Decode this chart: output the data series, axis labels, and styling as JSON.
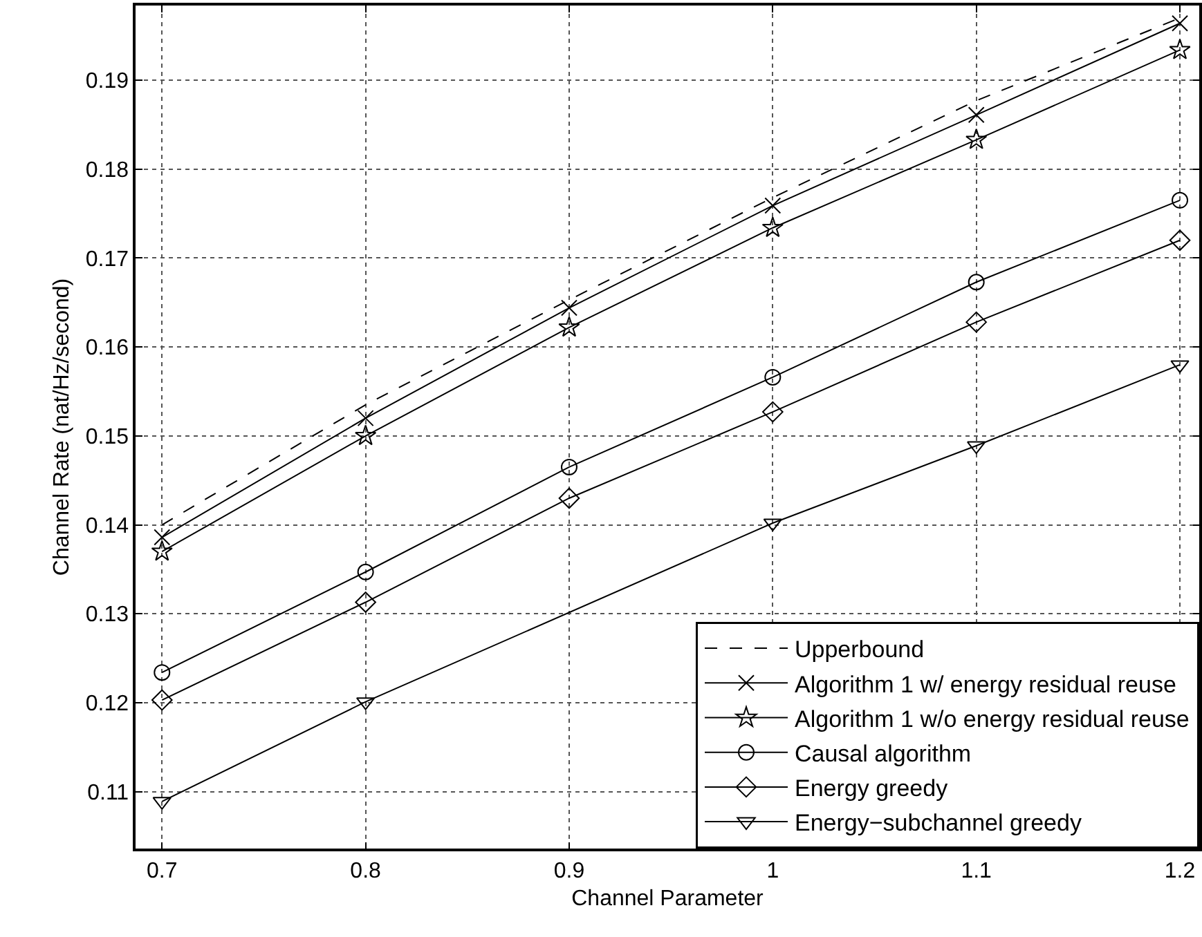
{
  "chart_data": {
    "type": "line",
    "xlabel": "Channel Parameter",
    "ylabel": "Channel Rate (nat/Hz/second)",
    "x": [
      0.7,
      0.8,
      0.9,
      1.0,
      1.1,
      1.2
    ],
    "xlim": [
      0.687,
      1.2095
    ],
    "xticks": [
      0.7,
      0.8,
      0.9,
      1,
      1.1,
      1.2
    ],
    "ylim": [
      0.1036,
      0.1984
    ],
    "yticks": [
      0.11,
      0.12,
      0.13,
      0.14,
      0.15,
      0.16,
      0.17,
      0.18,
      0.19
    ],
    "grid": true,
    "legend": "bottom right",
    "series": [
      {
        "name": "Upperbound",
        "color": "#000000",
        "marker": "none",
        "line_style": "dashed",
        "values": [
          0.14,
          0.1535,
          0.1653,
          0.1768,
          0.1877,
          0.197
        ]
      },
      {
        "name": "Algorithm 1 w/ energy residual reuse",
        "color": "#000000",
        "marker": "cross",
        "line_style": "solid",
        "values": [
          0.1386,
          0.152,
          0.1644,
          0.1759,
          0.1861,
          0.1964
        ]
      },
      {
        "name": "Algorithm 1 w/o energy residual reuse",
        "color": "#000000",
        "marker": "star",
        "line_style": "solid",
        "values": [
          0.137,
          0.15,
          0.1622,
          0.1734,
          0.1833,
          0.1934
        ]
      },
      {
        "name": "Causal algorithm",
        "color": "#000000",
        "marker": "circle",
        "line_style": "solid",
        "values": [
          0.1234,
          0.1347,
          0.1465,
          0.1566,
          0.1673,
          0.1765
        ]
      },
      {
        "name": "Energy greedy",
        "color": "#000000",
        "marker": "diamond",
        "line_style": "solid",
        "values": [
          0.1203,
          0.1313,
          0.143,
          0.1527,
          0.1628,
          0.172
        ]
      },
      {
        "name": "Energy−subchannel greedy",
        "color": "#000000",
        "marker": "triangle",
        "line_style": "solid",
        "values": [
          0.1089,
          0.1201,
          null,
          0.1402,
          0.1489,
          0.158
        ]
      }
    ]
  }
}
